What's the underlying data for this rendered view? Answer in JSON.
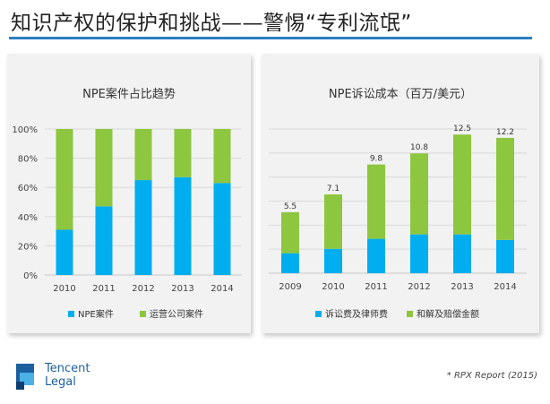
{
  "header": {
    "title": "知识产权的保护和挑战——警惕“专利流氓”"
  },
  "colors": {
    "accent": "#2b7fc0",
    "series_blue": "#00aeef",
    "series_green": "#8dc63f",
    "panel_bg": "#f2f2f2"
  },
  "chart_data": [
    {
      "type": "bar",
      "stacked": true,
      "title": "NPE案件占比趋势",
      "categories": [
        "2010",
        "2011",
        "2012",
        "2013",
        "2014"
      ],
      "series": [
        {
          "name": "NPE案件",
          "values": [
            31,
            47,
            65,
            67,
            63
          ],
          "color": "#00aeef"
        },
        {
          "name": "运营公司案件",
          "values": [
            69,
            53,
            35,
            33,
            37
          ],
          "color": "#8dc63f"
        }
      ],
      "ylim": [
        0,
        100
      ],
      "yticks": [
        "0%",
        "20%",
        "40%",
        "60%",
        "80%",
        "100%"
      ],
      "grid": true,
      "legend": "bottom"
    },
    {
      "type": "bar",
      "stacked": true,
      "title": "NPE诉讼成本（百万/美元）",
      "categories": [
        "2009",
        "2010",
        "2011",
        "2012",
        "2013",
        "2014"
      ],
      "series": [
        {
          "name": "诉讼费及律师费",
          "values": [
            1.8,
            2.2,
            3.1,
            3.5,
            3.5,
            3.0
          ],
          "color": "#00aeef"
        },
        {
          "name": "和解及赔偿金额",
          "values": [
            3.7,
            4.9,
            6.7,
            7.3,
            9.0,
            9.2
          ],
          "color": "#8dc63f"
        }
      ],
      "totals": [
        "5.5",
        "7.1",
        "9.8",
        "10.8",
        "12.5",
        "12.2"
      ],
      "ylim": [
        0,
        13
      ],
      "grid": true,
      "legend": "bottom"
    }
  ],
  "footer": {
    "logo_line1": "Tencent",
    "logo_line2": "Legal",
    "source": "* RPX Report (2015)"
  }
}
